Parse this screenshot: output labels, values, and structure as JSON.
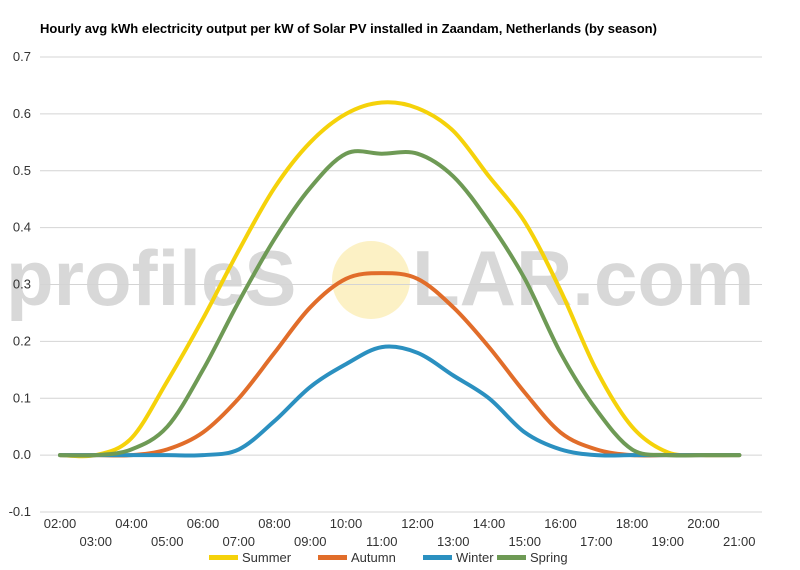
{
  "watermark": {
    "text_left": "profileS",
    "text_right": "LAR.com"
  },
  "chart_data": {
    "type": "line",
    "title": "Hourly avg kWh electricity output per kW of Solar PV installed in Zaandam, Netherlands (by season)",
    "xlabel": "",
    "ylabel": "",
    "x_ticks_top": [
      "02:00",
      "04:00",
      "06:00",
      "08:00",
      "10:00",
      "12:00",
      "14:00",
      "16:00",
      "18:00",
      "20:00"
    ],
    "x_ticks_bottom": [
      "03:00",
      "05:00",
      "07:00",
      "09:00",
      "11:00",
      "13:00",
      "15:00",
      "17:00",
      "19:00",
      "21:00"
    ],
    "y_ticks": [
      "0.7",
      "0.6",
      "0.5",
      "0.4",
      "0.3",
      "0.2",
      "0.1",
      "0.0",
      "-0.1"
    ],
    "ylim": [
      -0.1,
      0.7
    ],
    "grid": true,
    "legend_position": "bottom",
    "x": [
      "02:00",
      "03:00",
      "04:00",
      "05:00",
      "06:00",
      "07:00",
      "08:00",
      "09:00",
      "10:00",
      "11:00",
      "12:00",
      "13:00",
      "14:00",
      "15:00",
      "16:00",
      "17:00",
      "18:00",
      "19:00",
      "20:00",
      "21:00"
    ],
    "series": [
      {
        "name": "Summer",
        "color": "#f5d20a",
        "values": [
          0,
          0,
          0.03,
          0.13,
          0.24,
          0.36,
          0.47,
          0.55,
          0.6,
          0.62,
          0.61,
          0.57,
          0.49,
          0.41,
          0.29,
          0.15,
          0.05,
          0.005,
          0,
          0
        ]
      },
      {
        "name": "Autumn",
        "color": "#e16d2a",
        "values": [
          0,
          0,
          0,
          0.01,
          0.04,
          0.1,
          0.18,
          0.26,
          0.31,
          0.32,
          0.31,
          0.26,
          0.19,
          0.11,
          0.04,
          0.01,
          0,
          0,
          0,
          0
        ]
      },
      {
        "name": "Winter",
        "color": "#2b90c0",
        "values": [
          0,
          0,
          0,
          0,
          0,
          0.01,
          0.06,
          0.12,
          0.16,
          0.19,
          0.18,
          0.14,
          0.1,
          0.04,
          0.01,
          0,
          0,
          0,
          0,
          0
        ]
      },
      {
        "name": "Spring",
        "color": "#6e9a55",
        "values": [
          0,
          0,
          0.01,
          0.05,
          0.15,
          0.27,
          0.38,
          0.47,
          0.53,
          0.53,
          0.53,
          0.49,
          0.41,
          0.31,
          0.18,
          0.08,
          0.01,
          0,
          0,
          0
        ]
      }
    ]
  }
}
